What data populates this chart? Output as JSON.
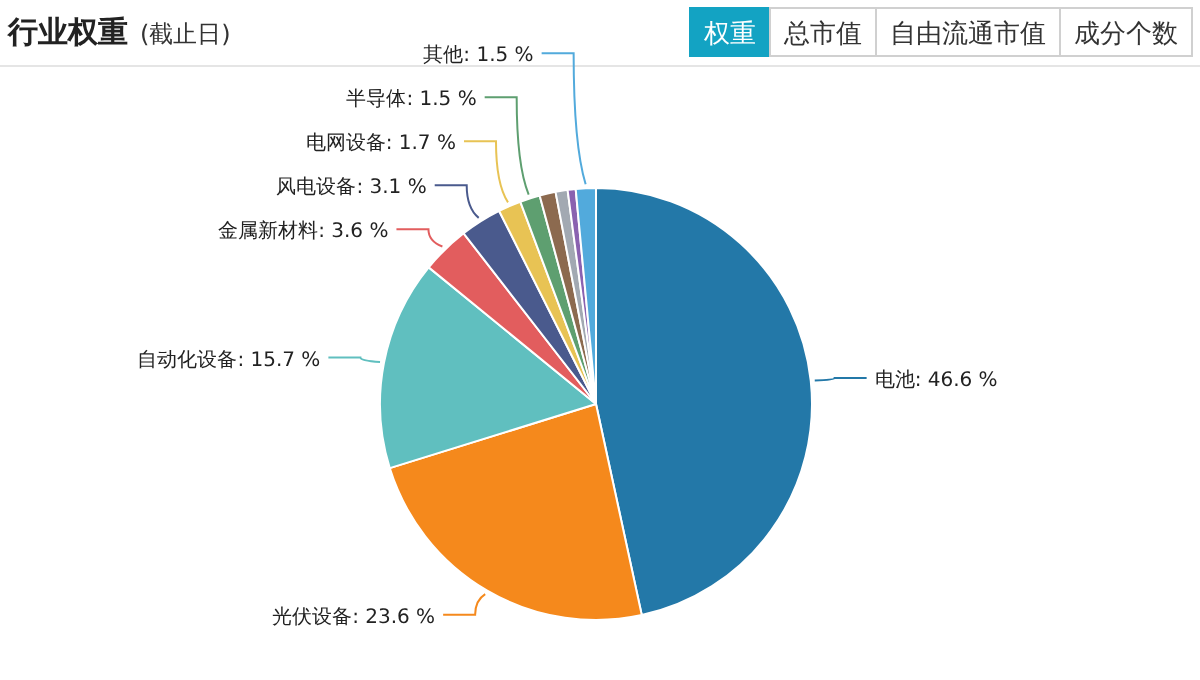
{
  "chart_data": {
    "type": "pie",
    "title": "行业权重",
    "subtitle": "(截止日)",
    "annotations": [
      "权重",
      "总市值",
      "自由流通市值",
      "成分个数"
    ],
    "categories": [
      "电池",
      "光伏设备",
      "自动化设备",
      "金属新材料",
      "风电设备",
      "电网设备",
      "半导体",
      null,
      null,
      null,
      "其他"
    ],
    "values": [
      46.6,
      23.6,
      15.7,
      3.6,
      3.1,
      1.7,
      1.5,
      1.2,
      0.9,
      0.6,
      1.5
    ],
    "value_labels": [
      "46.6 %",
      "23.6 %",
      "15.7 %",
      "3.6 %",
      "3.1 %",
      "1.7 %",
      "1.5 %",
      null,
      null,
      null,
      "1.5 %"
    ],
    "colors": [
      "#2378a8",
      "#f5891c",
      "#60bfbf",
      "#e25d5e",
      "#4a5a8d",
      "#e8c354",
      "#5e9f70",
      "#8c6a4f",
      "#a2a9b2",
      "#8a62b0",
      "#52aadc"
    ]
  }
}
